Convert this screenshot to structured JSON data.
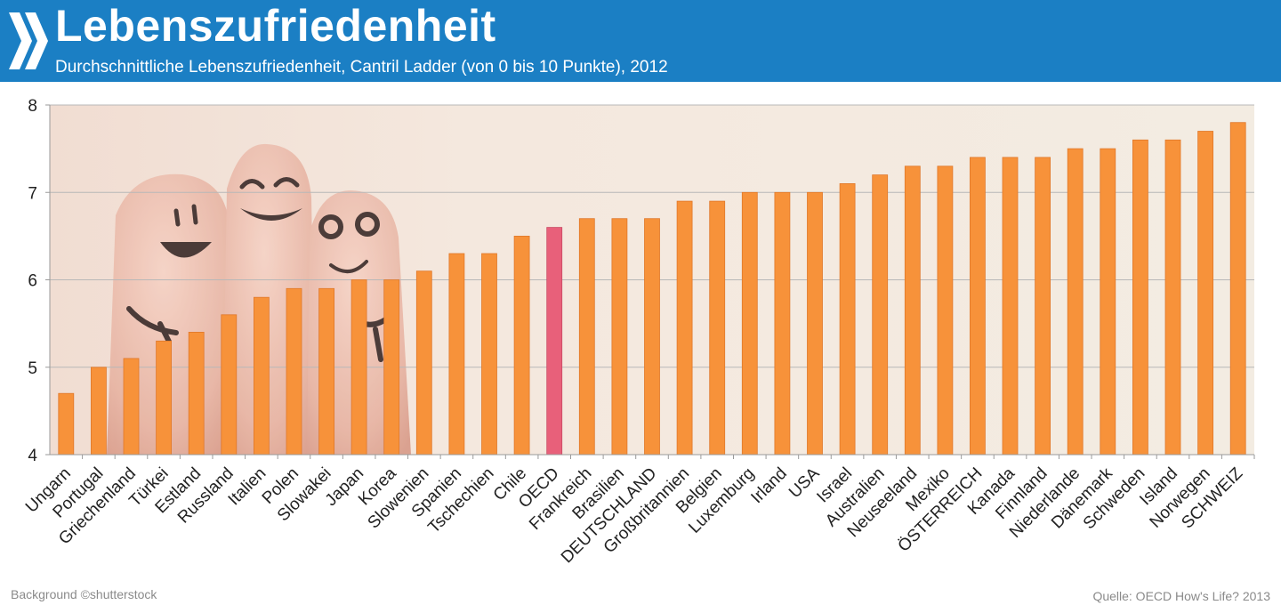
{
  "header": {
    "title": "Lebenszufriedenheit",
    "subtitle": "Durchschnittliche Lebenszufriedenheit, Cantril Ladder (von 0 bis 10 Punkte), 2012"
  },
  "footer": {
    "background_credit": "Background  ©shutterstock",
    "source": "Quelle: OECD  How's Life? 2013"
  },
  "colors": {
    "header_bg": "#1b7fc4",
    "bar": "#f7923a",
    "bar_highlight": "#e8607a",
    "plot_bg": "#f3eadf"
  },
  "chart_data": {
    "type": "bar",
    "title": "Lebenszufriedenheit",
    "subtitle": "Durchschnittliche Lebenszufriedenheit, Cantril Ladder (von 0 bis 10 Punkte), 2012",
    "xlabel": "",
    "ylabel": "",
    "ylim": [
      4,
      8
    ],
    "yticks": [
      4,
      5,
      6,
      7,
      8
    ],
    "grid": true,
    "highlight": "OECD",
    "categories": [
      "Ungarn",
      "Portugal",
      "Griechenland",
      "Türkei",
      "Estland",
      "Russland",
      "Italien",
      "Polen",
      "Slowakei",
      "Japan",
      "Korea",
      "Slowenien",
      "Spanien",
      "Tschechien",
      "Chile",
      "OECD",
      "Frankreich",
      "Brasilien",
      "DEUTSCHLAND",
      "Großbritannien",
      "Belgien",
      "Luxemburg",
      "Irland",
      "USA",
      "Israel",
      "Australien",
      "Neuseeland",
      "Mexiko",
      "ÖSTERREICH",
      "Kanada",
      "Finnland",
      "Niederlande",
      "Dänemark",
      "Schweden",
      "Island",
      "Norwegen",
      "SCHWEIZ"
    ],
    "values": [
      4.7,
      5.0,
      5.1,
      5.3,
      5.4,
      5.6,
      5.8,
      5.9,
      5.9,
      6.0,
      6.0,
      6.1,
      6.3,
      6.3,
      6.5,
      6.6,
      6.7,
      6.7,
      6.7,
      6.9,
      6.9,
      7.0,
      7.0,
      7.0,
      7.1,
      7.2,
      7.3,
      7.3,
      7.4,
      7.4,
      7.4,
      7.5,
      7.5,
      7.6,
      7.6,
      7.7,
      7.8
    ]
  }
}
